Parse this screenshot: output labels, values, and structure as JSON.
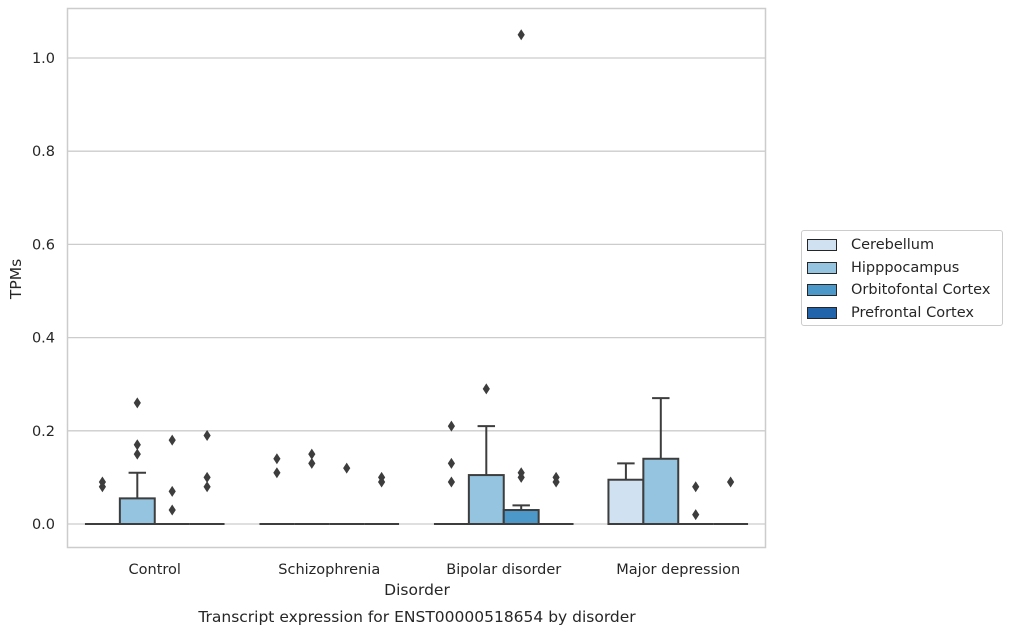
{
  "chart_data": {
    "type": "box",
    "caption": "Transcript expression for ENST00000518654 by disorder",
    "xlabel": "Disorder",
    "ylabel": "TPMs",
    "ylim": [
      -0.05,
      1.1
    ],
    "yticks": [
      0.0,
      0.2,
      0.4,
      0.6,
      0.8,
      1.0
    ],
    "ytick_labels": [
      "0.0",
      "0.2",
      "0.4",
      "0.6",
      "0.8",
      "1.0"
    ],
    "grid": "horizontal",
    "legend_position": "right",
    "categories": [
      "Control",
      "Schizophrenia",
      "Bipolar disorder",
      "Major depression"
    ],
    "series": [
      {
        "name": "Cerebellum",
        "color": "#d0e1f2",
        "boxes": [
          {
            "q1": 0,
            "median": 0,
            "q3": 0,
            "whisker_low": 0,
            "whisker_high": 0,
            "outliers": [
              0.08,
              0.09
            ]
          },
          {
            "q1": 0,
            "median": 0,
            "q3": 0,
            "whisker_low": 0,
            "whisker_high": 0,
            "outliers": [
              0.11,
              0.14
            ]
          },
          {
            "q1": 0,
            "median": 0,
            "q3": 0,
            "whisker_low": 0,
            "whisker_high": 0,
            "outliers": [
              0.09,
              0.13,
              0.21
            ]
          },
          {
            "q1": 0,
            "median": 0,
            "q3": 0.095,
            "whisker_low": 0,
            "whisker_high": 0.13,
            "outliers": []
          }
        ]
      },
      {
        "name": "Hipppocampus",
        "color": "#94c4df",
        "boxes": [
          {
            "q1": 0,
            "median": 0,
            "q3": 0.055,
            "whisker_low": 0,
            "whisker_high": 0.11,
            "outliers": [
              0.15,
              0.17,
              0.26
            ]
          },
          {
            "q1": 0,
            "median": 0,
            "q3": 0,
            "whisker_low": 0,
            "whisker_high": 0,
            "outliers": [
              0.13,
              0.15
            ]
          },
          {
            "q1": 0,
            "median": 0,
            "q3": 0.105,
            "whisker_low": 0,
            "whisker_high": 0.21,
            "outliers": [
              0.29
            ]
          },
          {
            "q1": 0,
            "median": 0,
            "q3": 0.14,
            "whisker_low": 0,
            "whisker_high": 0.27,
            "outliers": []
          }
        ]
      },
      {
        "name": "Orbitofontal Cortex",
        "color": "#4b98c9",
        "boxes": [
          {
            "q1": 0,
            "median": 0,
            "q3": 0,
            "whisker_low": 0,
            "whisker_high": 0,
            "outliers": [
              0.03,
              0.07,
              0.18
            ]
          },
          {
            "q1": 0,
            "median": 0,
            "q3": 0,
            "whisker_low": 0,
            "whisker_high": 0,
            "outliers": [
              0.12
            ]
          },
          {
            "q1": 0,
            "median": 0,
            "q3": 0.03,
            "whisker_low": 0,
            "whisker_high": 0.04,
            "outliers": [
              0.1,
              0.11,
              1.05
            ]
          },
          {
            "q1": 0,
            "median": 0,
            "q3": 0,
            "whisker_low": 0,
            "whisker_high": 0,
            "outliers": [
              0.02,
              0.08
            ]
          }
        ]
      },
      {
        "name": "Prefrontal Cortex",
        "color": "#2164ab",
        "boxes": [
          {
            "q1": 0,
            "median": 0,
            "q3": 0,
            "whisker_low": 0,
            "whisker_high": 0,
            "outliers": [
              0.08,
              0.1,
              0.19
            ]
          },
          {
            "q1": 0,
            "median": 0,
            "q3": 0,
            "whisker_low": 0,
            "whisker_high": 0,
            "outliers": [
              0.09,
              0.1
            ]
          },
          {
            "q1": 0,
            "median": 0,
            "q3": 0,
            "whisker_low": 0,
            "whisker_high": 0,
            "outliers": [
              0.09,
              0.1
            ]
          },
          {
            "q1": 0,
            "median": 0,
            "q3": 0,
            "whisker_low": 0,
            "whisker_high": 0,
            "outliers": [
              0.09
            ]
          }
        ]
      }
    ]
  }
}
